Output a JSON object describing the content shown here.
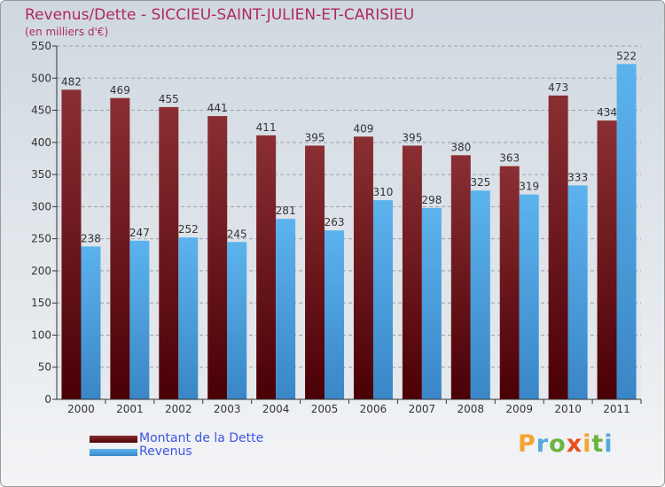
{
  "title": "Revenus/Dette - SICCIEU-SAINT-JULIEN-ET-CARISIEU",
  "subtitle": "(en milliers d'€)",
  "colors": {
    "title": "#b02a5c",
    "dette_light": "#8a2f33",
    "dette_dark": "#4a0006",
    "revenus_light": "#5cb3ee",
    "revenus_dark": "#3f8fcf",
    "legend_text": "#3f55e0"
  },
  "logo": {
    "text": "Proxiti",
    "letter_colors": [
      "#f2a531",
      "#55a8e0",
      "#6db33f",
      "#e94e1b",
      "#f2a531",
      "#6db33f",
      "#55a8e0"
    ]
  },
  "chart_data": {
    "type": "bar",
    "categories": [
      "2000",
      "2001",
      "2002",
      "2003",
      "2004",
      "2005",
      "2006",
      "2007",
      "2008",
      "2009",
      "2010",
      "2011"
    ],
    "series": [
      {
        "name": "Montant de la Dette",
        "values": [
          482,
          469,
          455,
          441,
          411,
          395,
          409,
          395,
          380,
          363,
          473,
          434
        ]
      },
      {
        "name": "Revenus",
        "values": [
          238,
          247,
          252,
          245,
          281,
          263,
          310,
          298,
          325,
          319,
          333,
          522
        ]
      }
    ],
    "ylim": [
      0,
      550
    ],
    "yticks": [
      0,
      50,
      100,
      150,
      200,
      250,
      300,
      350,
      400,
      450,
      500,
      550
    ],
    "grid": true,
    "legend_position": "bottom-left"
  }
}
